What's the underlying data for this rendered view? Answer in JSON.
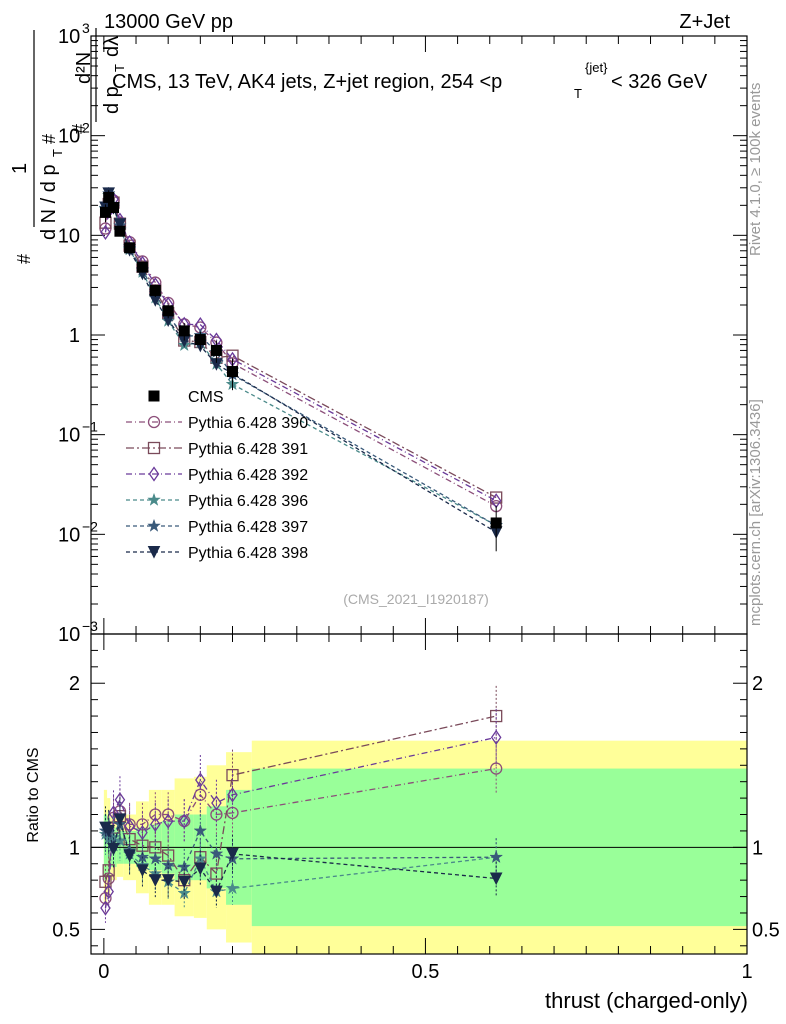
{
  "header": {
    "left": "13000 GeV pp",
    "right": "Z+Jet"
  },
  "side": {
    "rivet": "Rivet 4.1.0, ≥ 100k events",
    "mcplots": "mcplots.cern.ch [arXiv:1306.3436]"
  },
  "chart_data": {
    "type": "line",
    "title": "CMS, 13 TeV, AK4 jets, Z+jet region, 254 <p_T^{jet}< 326 GeV",
    "title_parts": {
      "main": "CMS, 13 TeV, AK4 jets, Z+jet region, 254 <p",
      "sub": "T",
      "sup": "{jet}",
      "tail": "< 326 GeV"
    },
    "ylabel_parts": {
      "hash1": "#",
      "one": "1",
      "dN": "d N / d p",
      "T1": "T",
      "hash2": "#",
      "d2N": "d²N",
      "hash3": "#",
      "dpdl": "d p",
      "T2": "T",
      "dl": "dλ"
    },
    "xlabel": "thrust (charged-only)",
    "ratio_ylabel": "Ratio to CMS",
    "analysis_id": "(CMS_2021_I1920187)",
    "xlim": [
      -0.02,
      1.0
    ],
    "ylim": [
      0.001,
      1000
    ],
    "ratio_ylim": [
      0.35,
      2.3
    ],
    "x_ticks": [
      {
        "v": 0,
        "label": "0"
      },
      {
        "v": 0.5,
        "label": "0.5"
      },
      {
        "v": 1,
        "label": "1"
      }
    ],
    "y_ticks": [
      {
        "v": 1000,
        "base": "10",
        "exp": "3"
      },
      {
        "v": 100,
        "base": "10",
        "exp": "2"
      },
      {
        "v": 10,
        "base": "10",
        "exp": ""
      },
      {
        "v": 1,
        "base": "1",
        "exp": ""
      },
      {
        "v": 0.1,
        "base": "10",
        "exp": "−1"
      },
      {
        "v": 0.01,
        "base": "10",
        "exp": "−2"
      },
      {
        "v": 0.001,
        "base": "10",
        "exp": "−3"
      }
    ],
    "ratio_ticks": [
      {
        "v": 2,
        "label": "2"
      },
      {
        "v": 1,
        "label": "1"
      },
      {
        "v": 0.5,
        "label": "0.5"
      }
    ],
    "x": [
      0.0025,
      0.0075,
      0.015,
      0.025,
      0.04,
      0.06,
      0.08,
      0.1,
      0.125,
      0.15,
      0.175,
      0.2,
      0.61
    ],
    "bins": [
      [
        0,
        0.005
      ],
      [
        0.005,
        0.01
      ],
      [
        0.01,
        0.02
      ],
      [
        0.02,
        0.03
      ],
      [
        0.03,
        0.05
      ],
      [
        0.05,
        0.07
      ],
      [
        0.07,
        0.09
      ],
      [
        0.09,
        0.11
      ],
      [
        0.11,
        0.14
      ],
      [
        0.14,
        0.16
      ],
      [
        0.16,
        0.19
      ],
      [
        0.19,
        0.23
      ],
      [
        0.23,
        1.0
      ]
    ],
    "cms": {
      "name": "CMS",
      "values": [
        17,
        24,
        19,
        11,
        7.5,
        4.8,
        2.8,
        1.75,
        1.1,
        0.9,
        0.7,
        0.43,
        0.013
      ],
      "band_inner": [
        0.2,
        0.18,
        0.12,
        0.1,
        0.1,
        0.12,
        0.14,
        0.16,
        0.2,
        0.2,
        0.25,
        0.35,
        0.48
      ],
      "band_outer": [
        0.35,
        0.3,
        0.2,
        0.18,
        0.2,
        0.28,
        0.35,
        0.35,
        0.42,
        0.43,
        0.5,
        0.58,
        0.65
      ]
    },
    "series": [
      {
        "name": "Pythia 6.428 390",
        "color": "#8c4f7a",
        "marker": "circle",
        "dash": "6 3 1 3",
        "values": [
          11.7,
          19.5,
          22.4,
          13.4,
          8.55,
          5.47,
          3.36,
          2.1,
          1.28,
          1.19,
          0.84,
          0.52,
          0.0192
        ],
        "ratio": [
          0.69,
          0.81,
          1.18,
          1.22,
          1.14,
          1.14,
          1.2,
          1.2,
          1.16,
          1.32,
          1.2,
          1.21,
          1.48
        ]
      },
      {
        "name": "Pythia 6.428 391",
        "color": "#7a4a5a",
        "marker": "square",
        "dash": "8 3 2 3",
        "values": [
          13.4,
          20.6,
          21.3,
          13.1,
          7.87,
          4.85,
          2.8,
          1.66,
          0.88,
          0.85,
          0.59,
          0.62,
          0.0234
        ],
        "ratio": [
          0.79,
          0.86,
          1.12,
          1.19,
          1.05,
          1.01,
          1.0,
          0.95,
          0.8,
          0.94,
          0.84,
          1.44,
          1.8
        ]
      },
      {
        "name": "Pythia 6.428 392",
        "color": "#6a3a9a",
        "marker": "diamond",
        "dash": "6 3 1 3",
        "values": [
          10.7,
          17.5,
          23.0,
          14.2,
          8.48,
          5.23,
          3.18,
          2.03,
          1.28,
          1.27,
          0.89,
          0.57,
          0.0217
        ],
        "ratio": [
          0.63,
          0.73,
          1.21,
          1.29,
          1.13,
          1.09,
          1.14,
          1.16,
          1.16,
          1.41,
          1.27,
          1.32,
          1.67
        ]
      },
      {
        "name": "Pythia 6.428 396",
        "color": "#4a8a8a",
        "marker": "star",
        "dash": "4 3",
        "values": [
          18.4,
          25.2,
          20.1,
          11.4,
          7.2,
          4.27,
          2.36,
          1.38,
          0.79,
          0.84,
          0.51,
          0.32,
          0.0123
        ],
        "ratio": [
          1.08,
          1.05,
          1.06,
          1.04,
          0.96,
          0.89,
          0.84,
          0.79,
          0.72,
          0.93,
          0.73,
          0.75,
          0.94
        ]
      },
      {
        "name": "Pythia 6.428 397",
        "color": "#3a5a7a",
        "marker": "star",
        "dash": "4 3",
        "values": [
          18.7,
          26.2,
          19.2,
          12.5,
          7.35,
          4.5,
          2.6,
          1.56,
          0.97,
          0.99,
          0.67,
          0.4,
          0.0123
        ],
        "ratio": [
          1.1,
          1.09,
          1.01,
          1.14,
          0.98,
          0.94,
          0.93,
          0.89,
          0.88,
          1.1,
          0.96,
          0.93,
          0.94
        ]
      },
      {
        "name": "Pythia 6.428 398",
        "color": "#1a2a4a",
        "marker": "triangle-down",
        "dash": "4 3",
        "values": [
          19.0,
          26.4,
          18.8,
          12.9,
          7.13,
          4.13,
          2.24,
          1.4,
          0.87,
          0.78,
          0.51,
          0.41,
          0.0105
        ],
        "ratio": [
          1.12,
          1.1,
          0.99,
          1.17,
          0.95,
          0.86,
          0.8,
          0.8,
          0.79,
          0.87,
          0.73,
          0.96,
          0.81
        ]
      }
    ]
  }
}
